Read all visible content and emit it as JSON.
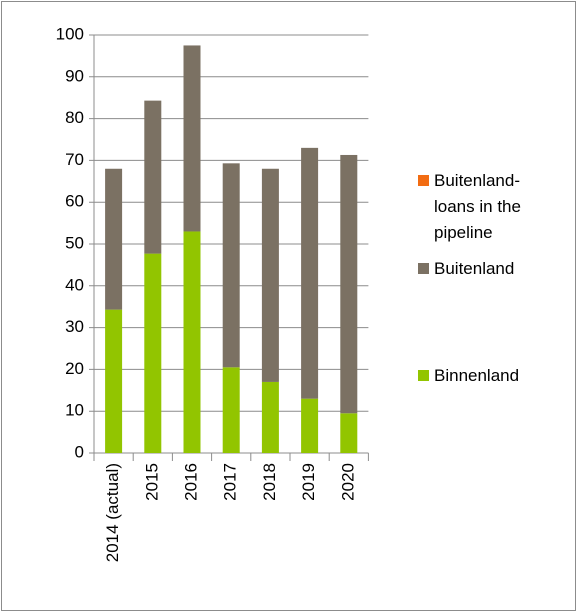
{
  "chart_data": {
    "type": "stacked_bar",
    "categories": [
      "2014 (actual)",
      "2015",
      "2016",
      "2017",
      "2018",
      "2019",
      "2020"
    ],
    "series": [
      {
        "name": "Binnenland",
        "color": "#92c500",
        "values": [
          34.3,
          47.7,
          53,
          20.5,
          17,
          13,
          9.5
        ]
      },
      {
        "name": "Buitenland",
        "color": "#7b7163",
        "values": [
          33.7,
          36.6,
          44.5,
          48.8,
          51,
          60,
          61.8
        ]
      },
      {
        "name": "Buitenland-loans in the pipeline",
        "color": "#f26c12",
        "values": [
          0,
          0,
          0,
          0,
          0,
          0,
          0
        ]
      }
    ],
    "ylim": [
      0,
      100
    ],
    "yticks": [
      0,
      10,
      20,
      30,
      40,
      50,
      60,
      70,
      80,
      90,
      100
    ],
    "grid": true,
    "legend": "right"
  }
}
